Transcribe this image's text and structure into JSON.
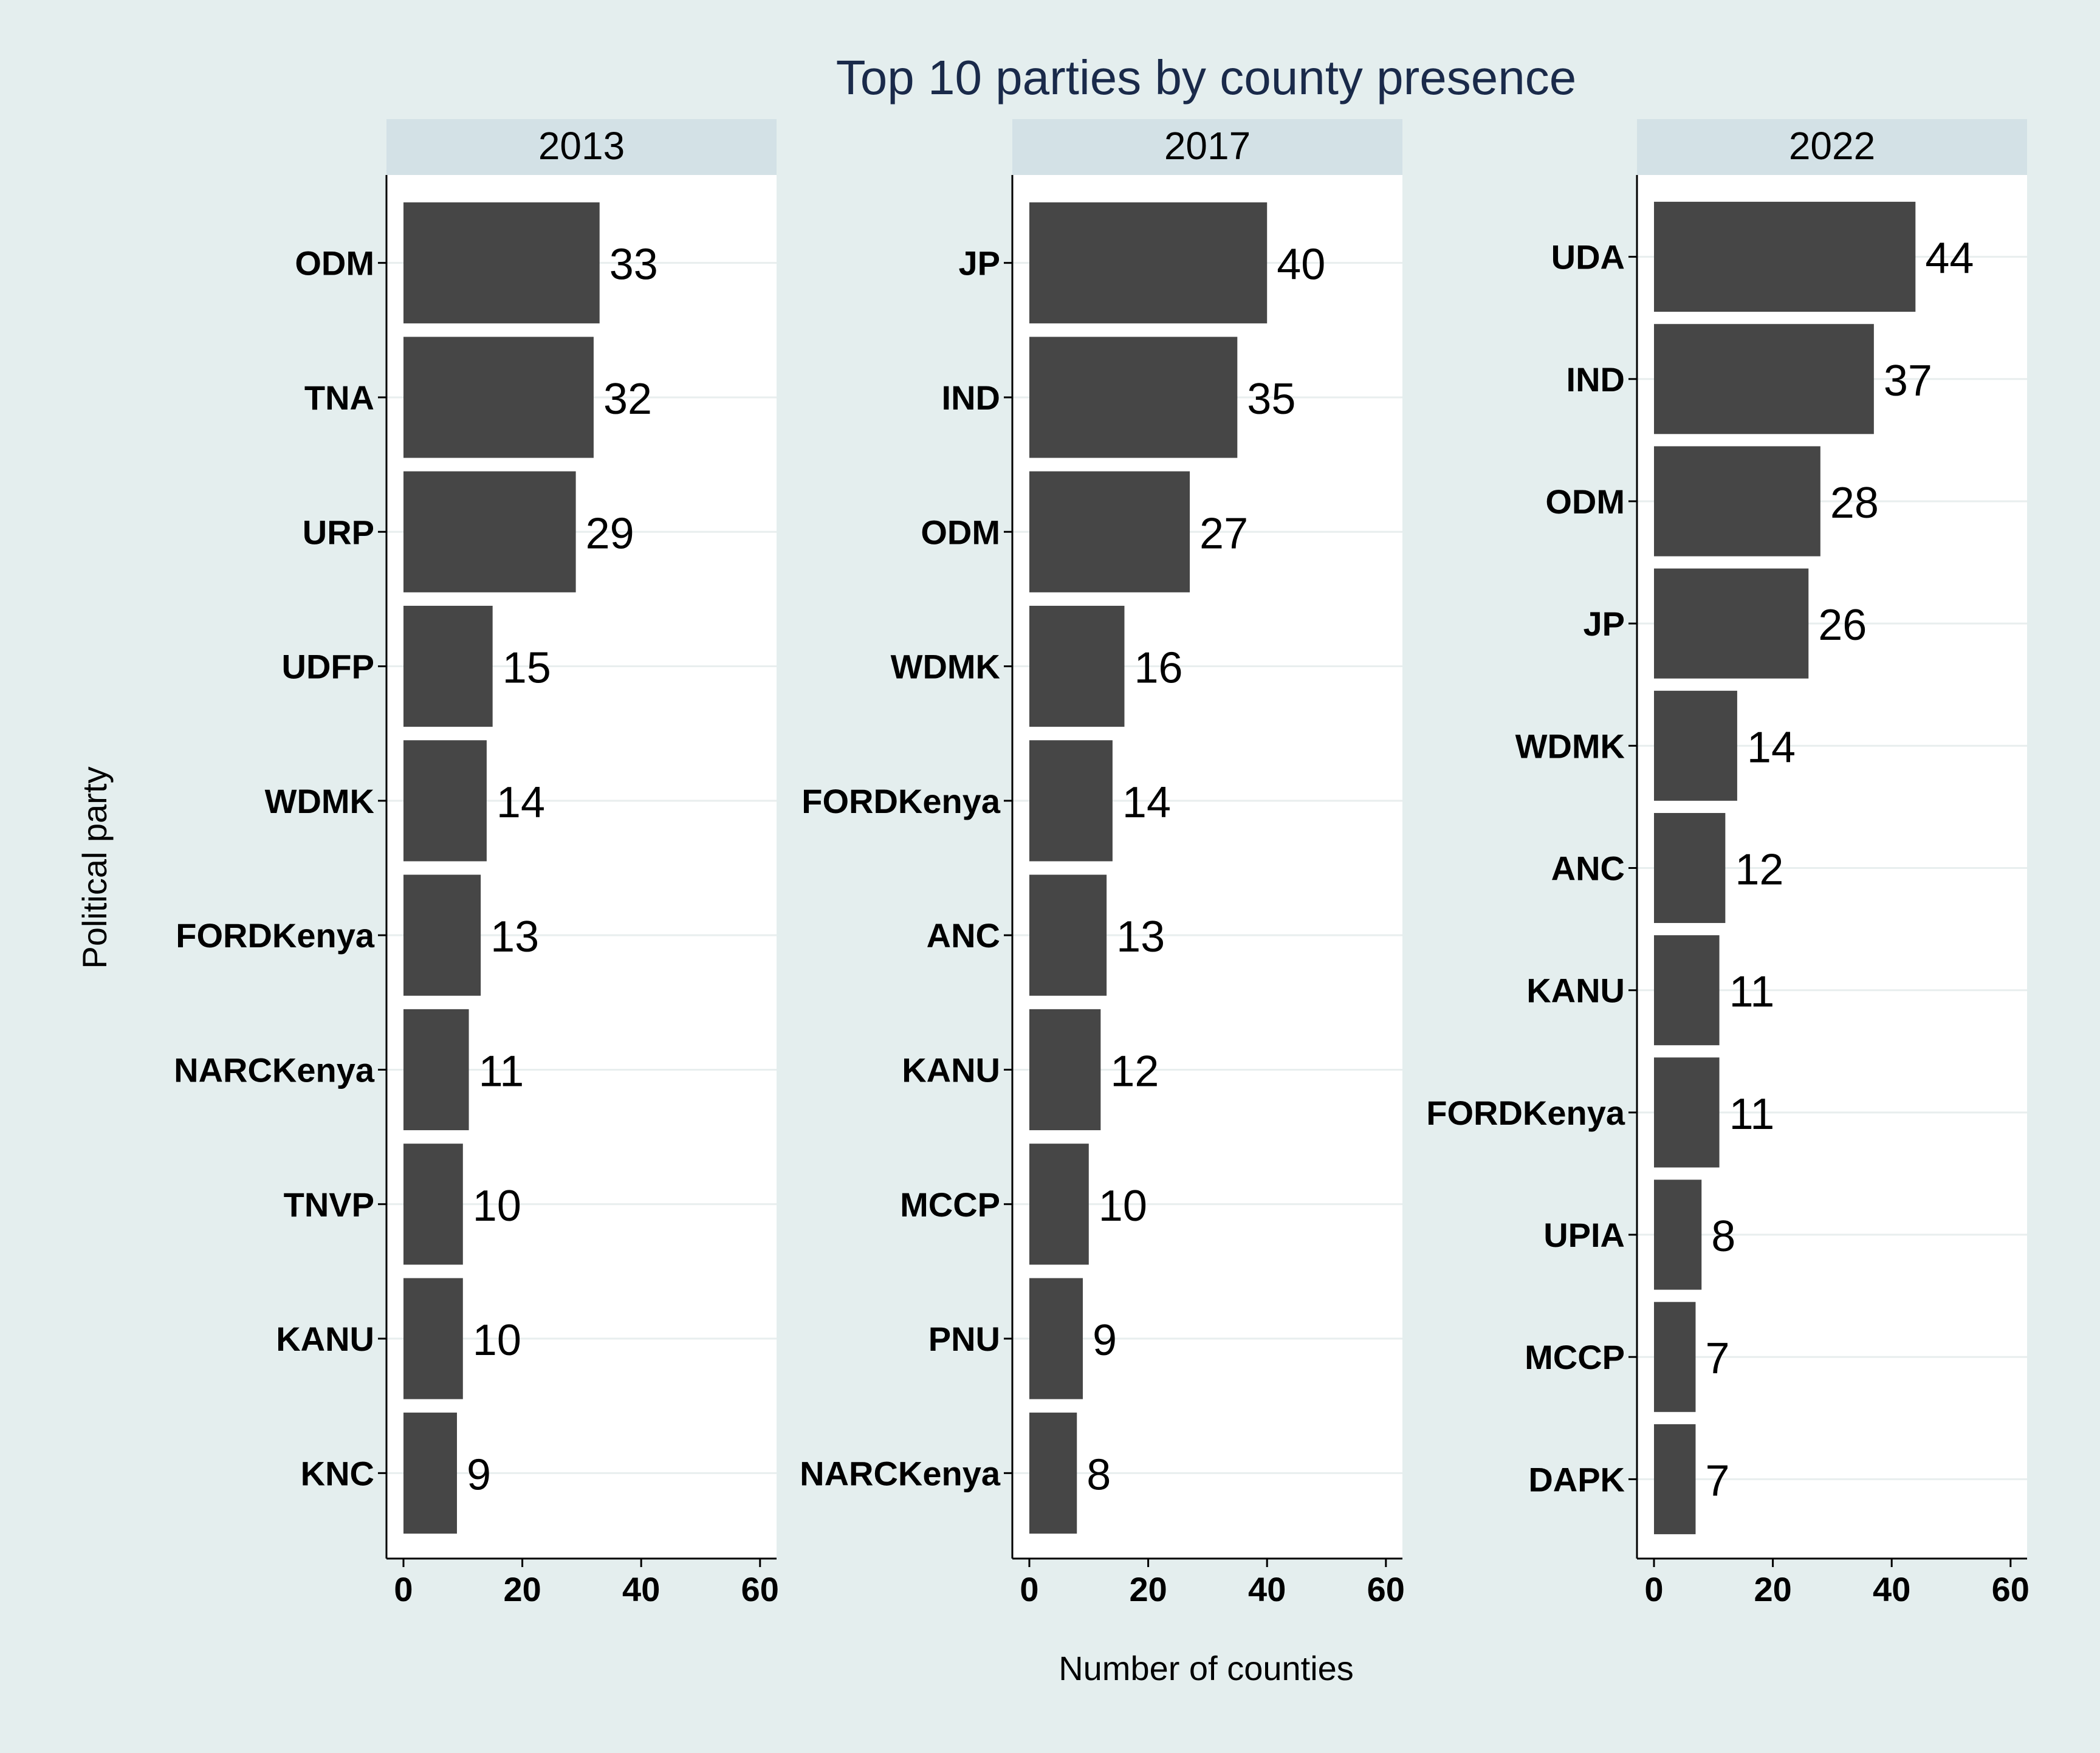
{
  "title": "Top 10 parties by county presence",
  "xlabel": "Number of counties",
  "ylabel": "Political party",
  "colors": {
    "background": "#e4eeee",
    "panel": "#ffffff",
    "strip": "#d3e1e6",
    "bar": "#464646",
    "title": "#1a2a4a",
    "grid": "#e8eeee"
  },
  "chart_data": [
    {
      "type": "bar",
      "orientation": "horizontal",
      "panel": "2013",
      "categories": [
        "ODM",
        "TNA",
        "URP",
        "UDFP",
        "WDMK",
        "FORDKenya",
        "NARCKenya",
        "TNVP",
        "KANU",
        "KNC"
      ],
      "values": [
        33,
        32,
        29,
        15,
        14,
        13,
        11,
        10,
        10,
        9
      ],
      "xlim": [
        0,
        60
      ],
      "xticks": [
        0,
        20,
        40,
        60
      ]
    },
    {
      "type": "bar",
      "orientation": "horizontal",
      "panel": "2017",
      "categories": [
        "JP",
        "IND",
        "ODM",
        "WDMK",
        "FORDKenya",
        "ANC",
        "KANU",
        "MCCP",
        "PNU",
        "NARCKenya"
      ],
      "values": [
        40,
        35,
        27,
        16,
        14,
        13,
        12,
        10,
        9,
        8
      ],
      "xlim": [
        0,
        60
      ],
      "xticks": [
        0,
        20,
        40,
        60
      ]
    },
    {
      "type": "bar",
      "orientation": "horizontal",
      "panel": "2022",
      "categories": [
        "UDA",
        "IND",
        "ODM",
        "JP",
        "WDMK",
        "ANC",
        "KANU",
        "FORDKenya",
        "UPIA",
        "MCCP",
        "DAPK"
      ],
      "values": [
        44,
        37,
        28,
        26,
        14,
        12,
        11,
        11,
        8,
        7,
        7
      ],
      "xlim": [
        0,
        60
      ],
      "xticks": [
        0,
        20,
        40,
        60
      ]
    }
  ]
}
